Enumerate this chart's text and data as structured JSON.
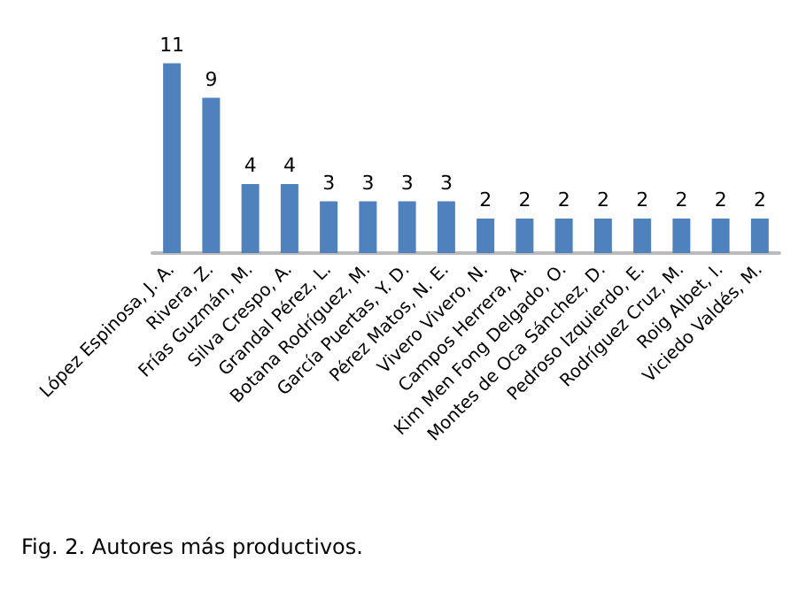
{
  "chart_data": {
    "type": "bar",
    "categories": [
      "López Espinosa, J. A.",
      "Rivera, Z.",
      "Frías Guzmán, M.",
      "Silva Crespo, A.",
      "Grandal Pérez, L.",
      "Botana Rodríguez, M.",
      "García Puertas, Y. D.",
      "Pérez Matos, N. E.",
      "Vivero Vivero, N.",
      "Campos Herrera, A.",
      "Kim Men Fong Delgado, O.",
      "Montes de Oca Sánchez, D.",
      "Pedroso Izquierdo, E.",
      "Rodríguez Cruz, M.",
      "Roig Albet, I.",
      "Viciedo Valdés, M."
    ],
    "values": [
      11,
      9,
      4,
      4,
      3,
      3,
      3,
      3,
      2,
      2,
      2,
      2,
      2,
      2,
      2,
      2
    ],
    "color": "#4f81bd",
    "data_labels": true,
    "annotations": [
      "Fig. 2. Autores más productivos."
    ]
  }
}
